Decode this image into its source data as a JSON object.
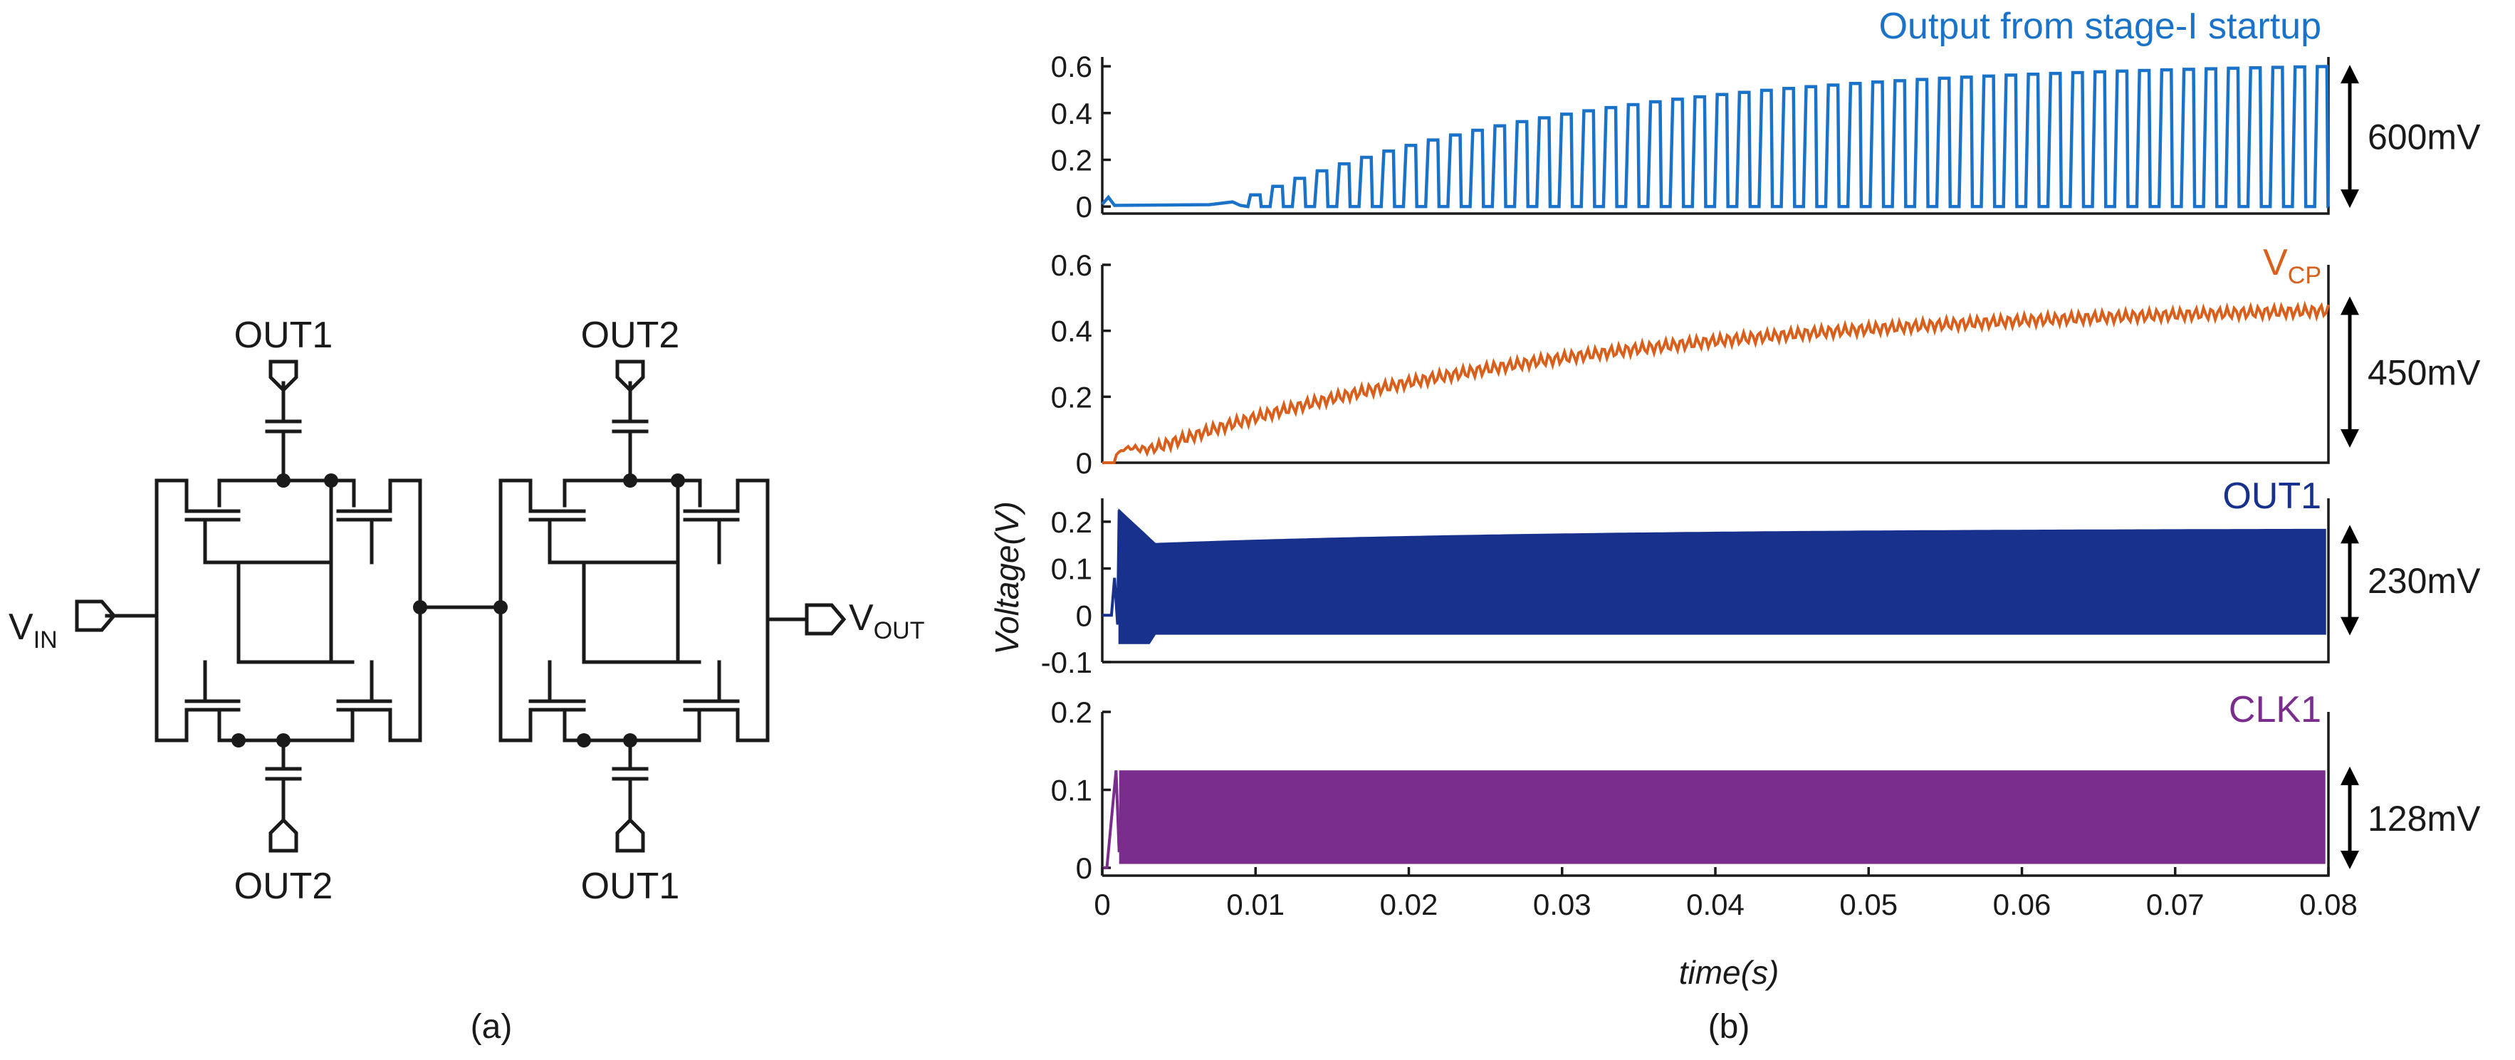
{
  "captions": {
    "a": "(a)",
    "b": "(b)"
  },
  "circuit": {
    "labels": {
      "top_left": "OUT1",
      "top_right": "OUT2",
      "bottom_left": "OUT2",
      "bottom_right": "OUT1",
      "vin_main": "V",
      "vin_sub": "IN",
      "vout_main": "V",
      "vout_sub": "OUT"
    }
  },
  "axes": {
    "x_label": "time(s)",
    "y_label": "Voltage(V)"
  },
  "chart_data": {
    "type": "line",
    "x_axis": {
      "label": "time(s)",
      "lim": [
        0,
        0.08
      ],
      "ticks": [
        "0",
        "0.01",
        "0.02",
        "0.03",
        "0.04",
        "0.05",
        "0.06",
        "0.07",
        "0.08"
      ],
      "tick_values": [
        0,
        0.01,
        0.02,
        0.03,
        0.04,
        0.05,
        0.06,
        0.07,
        0.08
      ]
    },
    "y_label": "Voltage(V)",
    "panels": [
      {
        "name": "stage1-output",
        "title": "Output from stage-I startup",
        "label_main": "Output from stage-I startup",
        "label_sub": "",
        "color": "#1a73c8",
        "ylim": [
          -0.03,
          0.64
        ],
        "yticks": [
          "0",
          "0.2",
          "0.4",
          "0.6"
        ],
        "ytick_values": [
          0,
          0.2,
          0.4,
          0.6
        ],
        "swing_label": "600mV",
        "swing_range": [
          0,
          0.6
        ],
        "waveform": "growing square pulses",
        "start_time": 0.0095,
        "period": 0.00145,
        "duty": 0.55,
        "env_start": 0.05,
        "env_end": 0.6,
        "low": 0.0
      },
      {
        "name": "vcp",
        "title": "VCP",
        "label_main": "V",
        "label_sub": "CP",
        "color": "#d9601c",
        "ylim": [
          0,
          0.6
        ],
        "yticks": [
          "0",
          "0.2",
          "0.4",
          "0.6"
        ],
        "ytick_values": [
          0,
          0.2,
          0.4,
          0.6
        ],
        "swing_label": "450mV",
        "swing_range": [
          0.05,
          0.5
        ],
        "waveform": "rising ripple",
        "final_value": 0.49,
        "time_constant": 0.028,
        "ripple": 0.018
      },
      {
        "name": "out1",
        "title": "OUT1",
        "label_main": "OUT1",
        "label_sub": "",
        "color": "#17318c",
        "ylim": [
          -0.1,
          0.25
        ],
        "yticks": [
          "-0.1",
          "0",
          "0.1",
          "0.2"
        ],
        "ytick_values": [
          -0.1,
          0,
          0.1,
          0.2
        ],
        "swing_label": "230mV",
        "swing_range": [
          -0.04,
          0.19
        ],
        "waveform": "dense oscillation band",
        "band_high_start": 0.15,
        "band_high_end": 0.185,
        "band_low": -0.04,
        "peak": 0.225
      },
      {
        "name": "clk1",
        "title": "CLK1",
        "label_main": "CLK1",
        "label_sub": "",
        "color": "#7b2d8e",
        "ylim": [
          -0.01,
          0.2
        ],
        "yticks": [
          "0",
          "0.1",
          "0.2"
        ],
        "ytick_values": [
          0,
          0.1,
          0.2
        ],
        "swing_label": "128mV",
        "swing_range": [
          0.0,
          0.128
        ],
        "waveform": "dense clock band",
        "band_high": 0.125,
        "band_low": 0.005
      }
    ]
  }
}
